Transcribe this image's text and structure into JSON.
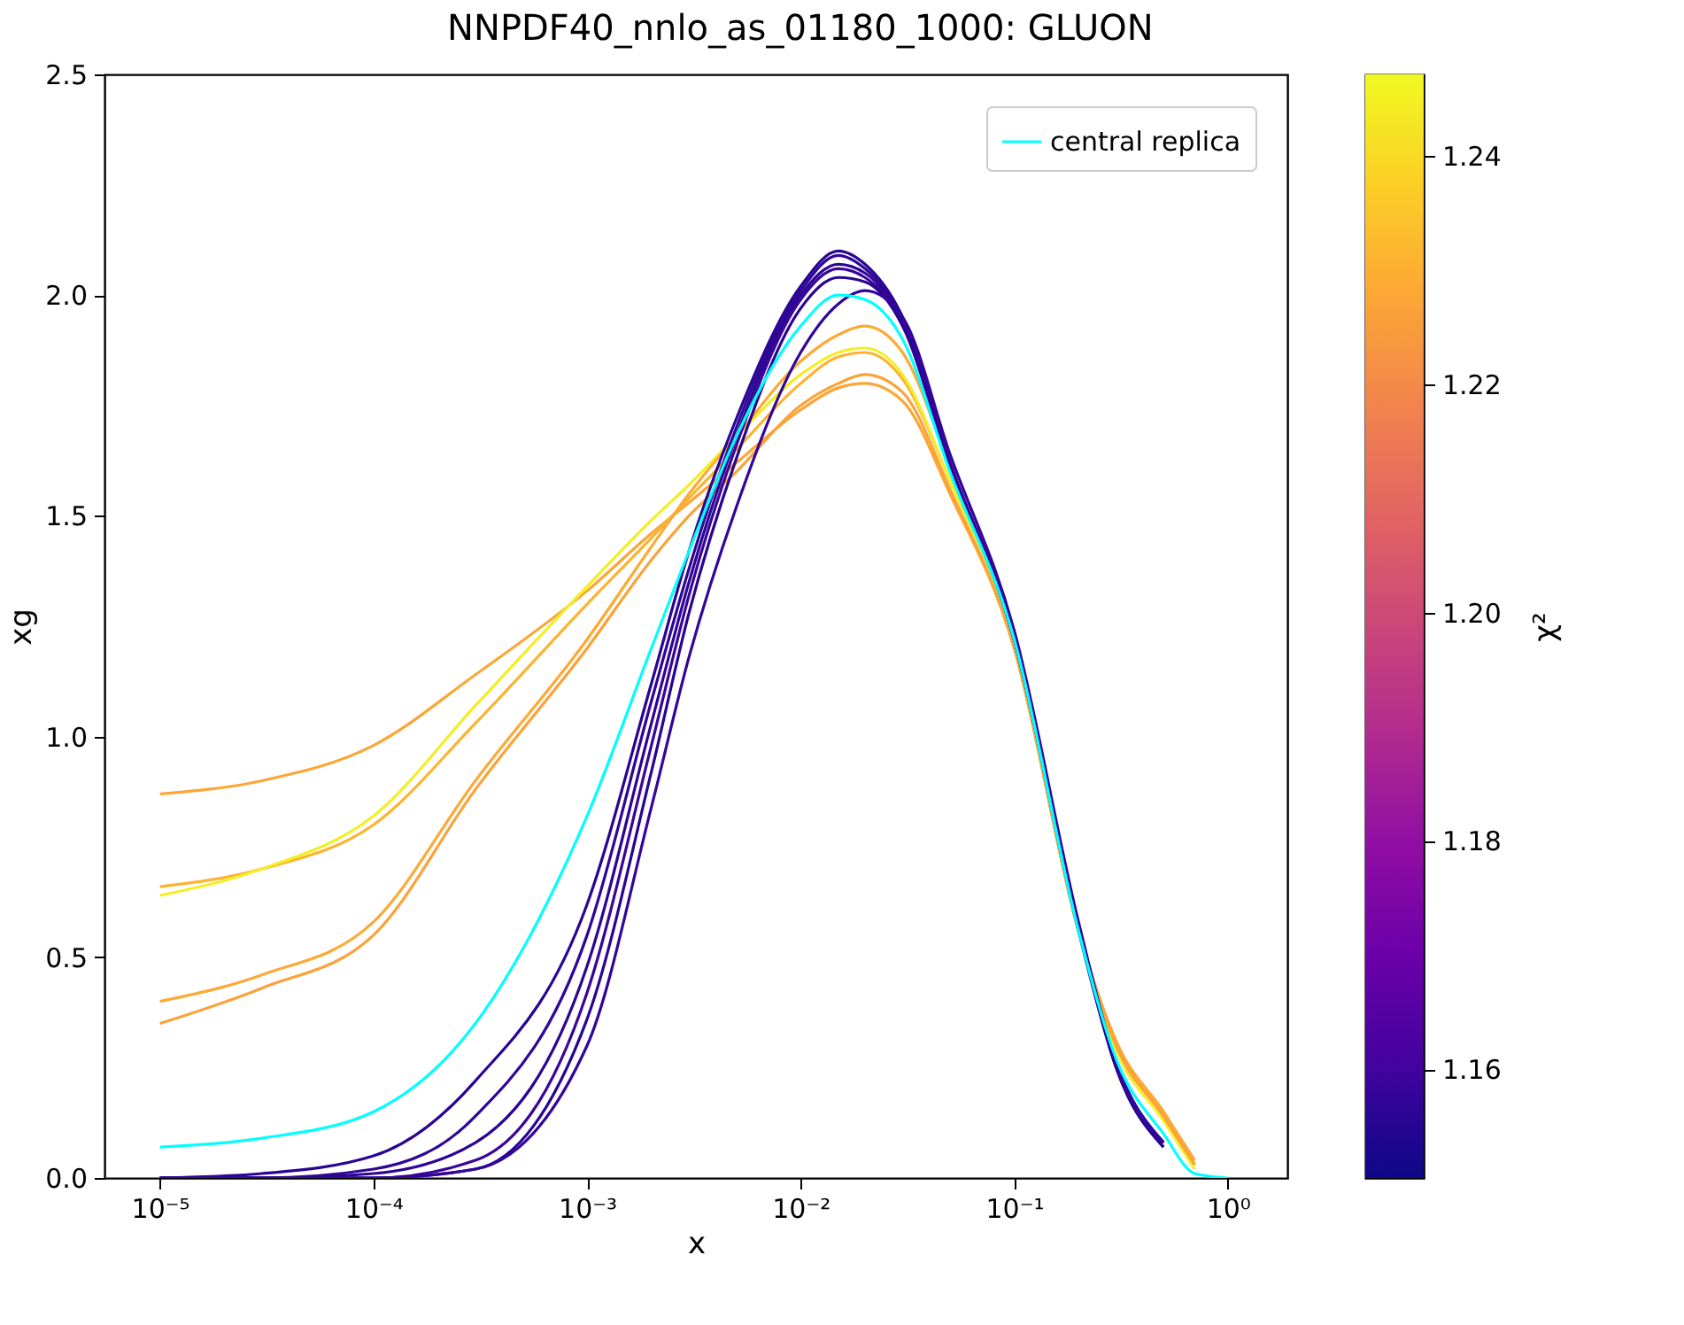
{
  "chart_data": {
    "type": "line",
    "title": "NNPDF40_nnlo_as_01180_1000: GLUON",
    "xlabel": "x",
    "ylabel": "xg",
    "clabel": "χ²",
    "log": "x",
    "legend": "top right",
    "x": [
      1e-05,
      3e-05,
      0.0001,
      0.0003,
      0.001,
      0.002,
      0.003,
      0.005,
      0.01,
      0.015,
      0.02,
      0.03,
      0.05,
      0.1,
      0.2,
      0.3,
      0.5,
      0.7,
      1
    ],
    "xlim": [
      5.5e-06,
      1.9
    ],
    "ylim": [
      0,
      2.5
    ],
    "xticks": [
      {
        "value": 1e-05,
        "label": "10⁻⁵"
      },
      {
        "value": 0.0001,
        "label": "10⁻⁴"
      },
      {
        "value": 0.001,
        "label": "10⁻³"
      },
      {
        "value": 0.01,
        "label": "10⁻²"
      },
      {
        "value": 0.1,
        "label": "10⁻¹"
      },
      {
        "value": 1,
        "label": "10⁰"
      }
    ],
    "yticks": [
      {
        "value": 0,
        "label": "0.0"
      },
      {
        "value": 0.5,
        "label": "0.5"
      },
      {
        "value": 1,
        "label": "1.0"
      },
      {
        "value": 1.5,
        "label": "1.5"
      },
      {
        "value": 2,
        "label": "2.0"
      },
      {
        "value": 2.5,
        "label": "2.5"
      }
    ],
    "clim": [
      1.1505,
      1.2471
    ],
    "cticks": [
      1.16,
      1.18,
      {
        "value": 1.2,
        "label": "1.20"
      },
      1.22,
      1.24
    ],
    "series": [
      {
        "color": "#fca636",
        "values": [
          0.87,
          0.9,
          0.98,
          1.14,
          1.33,
          1.46,
          1.53,
          1.62,
          1.74,
          1.79,
          1.8,
          1.76,
          1.55,
          1.2,
          0.56,
          0.31,
          0.15,
          0.04,
          null
        ]
      },
      {
        "color": "#fdb32f",
        "values": [
          0.66,
          0.7,
          0.8,
          1.03,
          1.3,
          1.45,
          1.54,
          1.65,
          1.8,
          1.86,
          1.87,
          1.81,
          1.58,
          1.21,
          0.56,
          0.3,
          0.14,
          0.03,
          null
        ]
      },
      {
        "color": "#f3ee27",
        "values": [
          0.64,
          0.7,
          0.82,
          1.07,
          1.34,
          1.49,
          1.57,
          1.68,
          1.82,
          1.87,
          1.88,
          1.82,
          1.58,
          1.21,
          0.56,
          0.29,
          0.13,
          0.02,
          null
        ]
      },
      {
        "color": "#fcaa36",
        "values": [
          0.4,
          0.46,
          0.58,
          0.9,
          1.22,
          1.43,
          1.55,
          1.68,
          1.85,
          1.91,
          1.93,
          1.87,
          1.61,
          1.22,
          0.56,
          0.3,
          0.15,
          0.03,
          null
        ]
      },
      {
        "color": "#fba238",
        "values": [
          0.35,
          0.43,
          0.55,
          0.88,
          1.2,
          1.4,
          1.5,
          1.6,
          1.75,
          1.8,
          1.82,
          1.78,
          1.56,
          1.2,
          0.56,
          0.3,
          0.14,
          0.03,
          null
        ]
      },
      {
        "color": "#2a0593",
        "values": [
          0,
          0.01,
          0.05,
          0.22,
          0.62,
          1.12,
          1.42,
          1.72,
          2.02,
          2.1,
          2.07,
          1.95,
          1.62,
          1.22,
          0.57,
          0.26,
          0.08,
          null,
          null
        ]
      },
      {
        "color": "#300597",
        "values": [
          0,
          0,
          0.02,
          0.14,
          0.55,
          1.08,
          1.38,
          1.7,
          2.01,
          2.09,
          2.06,
          1.95,
          1.62,
          1.23,
          0.57,
          0.26,
          0.08,
          null,
          null
        ]
      },
      {
        "color": "#2c0594",
        "values": [
          0,
          0,
          0.01,
          0.08,
          0.48,
          1.03,
          1.35,
          1.68,
          2,
          2.07,
          2.05,
          1.94,
          1.61,
          1.22,
          0.56,
          0.25,
          0.07,
          null,
          null
        ]
      },
      {
        "color": "#3b049a",
        "values": [
          0,
          0,
          0,
          0.04,
          0.42,
          0.98,
          1.32,
          1.66,
          1.99,
          2.06,
          2.04,
          1.94,
          1.62,
          1.23,
          0.57,
          0.26,
          0.08,
          null,
          null
        ]
      },
      {
        "color": "#280592",
        "values": [
          0,
          0,
          0,
          0.02,
          0.36,
          0.92,
          1.28,
          1.63,
          1.97,
          2.04,
          2.03,
          1.93,
          1.61,
          1.22,
          0.57,
          0.25,
          0.07,
          null,
          null
        ]
      },
      {
        "color": "#34059a",
        "values": [
          0,
          0,
          0,
          0.02,
          0.3,
          0.84,
          1.18,
          1.52,
          1.87,
          1.98,
          2.01,
          1.95,
          1.64,
          1.24,
          0.58,
          0.26,
          0.08,
          null,
          null
        ]
      },
      {
        "name": "central replica",
        "color": "#00ffff",
        "values": [
          0.07,
          0.09,
          0.15,
          0.35,
          0.82,
          1.2,
          1.42,
          1.68,
          1.93,
          2,
          1.99,
          1.9,
          1.6,
          1.22,
          0.56,
          0.27,
          0.1,
          0.01,
          0
        ]
      }
    ]
  }
}
